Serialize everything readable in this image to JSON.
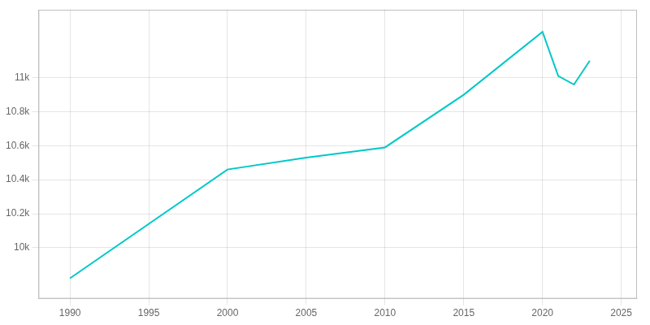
{
  "chart_data": {
    "type": "line",
    "x": [
      1990,
      2000,
      2005,
      2010,
      2015,
      2020,
      2021,
      2022,
      2023
    ],
    "values": [
      9820,
      10460,
      10530,
      10590,
      10900,
      11270,
      11010,
      10960,
      11100
    ],
    "color": "#00c8c8",
    "xlim": [
      1988,
      2026
    ],
    "ylim": [
      9700,
      11400
    ],
    "xticks": [
      1990,
      1995,
      2000,
      2005,
      2010,
      2015,
      2020,
      2025
    ],
    "yticks": [
      {
        "value": 10000,
        "label": "10k"
      },
      {
        "value": 10200,
        "label": "10.2k"
      },
      {
        "value": 10400,
        "label": "10.4k"
      },
      {
        "value": 10600,
        "label": "10.6k"
      },
      {
        "value": 10800,
        "label": "10.8k"
      },
      {
        "value": 11000,
        "label": "11k"
      }
    ],
    "grid": true
  }
}
